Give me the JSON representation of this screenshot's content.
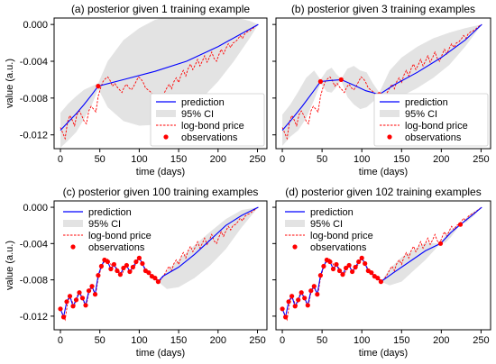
{
  "chart_data": [
    {
      "type": "line",
      "title": "(a) posterior given 1 training example",
      "xlabel": "time (days)",
      "ylabel": "value (a.u.)",
      "xlim": [
        -8,
        262
      ],
      "ylim": [
        -0.0135,
        0.0007
      ],
      "xticks": [
        "0",
        "50",
        "100",
        "150",
        "200",
        "250"
      ],
      "yticks": [
        "0.000",
        "-0.004",
        "-0.008",
        "-0.012"
      ],
      "legend": {
        "placement": "bottom-right",
        "entries": [
          "prediction",
          "95% CI",
          "log-bond price",
          "observations"
        ]
      },
      "prediction": {
        "x": [
          0,
          10,
          20,
          30,
          40,
          48,
          80,
          120,
          160,
          200,
          251
        ],
        "y": [
          -0.0115,
          -0.0106,
          -0.0097,
          -0.0087,
          -0.0076,
          -0.0067,
          -0.006,
          -0.0051,
          -0.004,
          -0.0024,
          0.0
        ]
      },
      "observations": {
        "x": [
          48
        ],
        "y": [
          -0.0067
        ]
      },
      "ci_band": {
        "x": [
          0,
          10,
          20,
          30,
          40,
          48,
          60,
          80,
          100,
          120,
          140,
          160,
          180,
          200,
          220,
          240,
          251
        ],
        "upper": [
          -0.0096,
          -0.0086,
          -0.0078,
          -0.0071,
          -0.0067,
          -0.0064,
          -0.004,
          -0.0017,
          -0.0004,
          0.0005,
          0.0009,
          0.001,
          0.0011,
          0.0011,
          0.0008,
          0.0004,
          0.0
        ],
        "lower": [
          -0.0134,
          -0.0126,
          -0.0117,
          -0.0103,
          -0.0087,
          -0.007,
          -0.009,
          -0.0105,
          -0.011,
          -0.0109,
          -0.0104,
          -0.0094,
          -0.008,
          -0.0062,
          -0.004,
          -0.0015,
          0.0
        ]
      }
    },
    {
      "type": "line",
      "title": "(b) posterior given 3 training examples",
      "xlabel": "time (days)",
      "ylabel": "",
      "xlim": [
        -8,
        262
      ],
      "ylim": [
        -0.0135,
        0.0007
      ],
      "xticks": [
        "0",
        "50",
        "100",
        "150",
        "200",
        "250"
      ],
      "yticks": [],
      "legend": {
        "placement": "bottom-right",
        "entries": [
          "prediction",
          "95% CI",
          "log-bond price",
          "observations"
        ]
      },
      "prediction": {
        "x": [
          0,
          12,
          25,
          38,
          48,
          60,
          74,
          90,
          105,
          122,
          140,
          170,
          200,
          230,
          251
        ],
        "y": [
          -0.0115,
          -0.0103,
          -0.0089,
          -0.0074,
          -0.0062,
          -0.0061,
          -0.006,
          -0.0066,
          -0.0072,
          -0.0076,
          -0.0066,
          -0.0052,
          -0.0036,
          -0.0017,
          0.0
        ]
      },
      "observations": {
        "x": [
          48,
          74,
          122
        ],
        "y": [
          -0.0062,
          -0.006,
          -0.0076
        ]
      },
      "ci_band": {
        "x": [
          0,
          10,
          20,
          30,
          40,
          48,
          56,
          62,
          68,
          74,
          82,
          90,
          98,
          106,
          114,
          122,
          135,
          150,
          170,
          190,
          210,
          230,
          251
        ],
        "upper": [
          -0.0098,
          -0.0087,
          -0.0073,
          -0.0058,
          -0.005,
          -0.006,
          -0.005,
          -0.0047,
          -0.0054,
          -0.0059,
          -0.0048,
          -0.0045,
          -0.005,
          -0.0052,
          -0.0064,
          -0.0074,
          -0.005,
          -0.0036,
          -0.0024,
          -0.0015,
          -0.0009,
          -0.0004,
          0.0
        ],
        "lower": [
          -0.0132,
          -0.0122,
          -0.0115,
          -0.0102,
          -0.0082,
          -0.0064,
          -0.0073,
          -0.0074,
          -0.0068,
          -0.0061,
          -0.0079,
          -0.0087,
          -0.0092,
          -0.009,
          -0.0084,
          -0.0078,
          -0.0082,
          -0.0078,
          -0.0069,
          -0.0058,
          -0.0044,
          -0.0024,
          0.0
        ]
      }
    },
    {
      "type": "line",
      "title": "(c) posterior given 100 training examples",
      "xlabel": "time (days)",
      "ylabel": "value (a.u.)",
      "xlim": [
        -8,
        262
      ],
      "ylim": [
        -0.0135,
        0.0007
      ],
      "xticks": [
        "0",
        "50",
        "100",
        "150",
        "200",
        "250"
      ],
      "yticks": [
        "0.000",
        "-0.004",
        "-0.008",
        "-0.012"
      ],
      "legend": {
        "placement": "top-left",
        "entries": [
          "prediction",
          "95% CI",
          "log-bond price",
          "observations"
        ]
      },
      "prediction": {
        "x": [
          0,
          4,
          8,
          12,
          16,
          20,
          24,
          28,
          32,
          36,
          40,
          44,
          48,
          52,
          56,
          60,
          64,
          68,
          72,
          76,
          80,
          84,
          88,
          92,
          96,
          100,
          104,
          108,
          112,
          116,
          120,
          124,
          130,
          150,
          170,
          190,
          210,
          230,
          251
        ],
        "y": [
          -0.0112,
          -0.0121,
          -0.0104,
          -0.0098,
          -0.0109,
          -0.0102,
          -0.0094,
          -0.01,
          -0.0108,
          -0.0092,
          -0.0087,
          -0.0096,
          -0.0075,
          -0.0065,
          -0.0058,
          -0.006,
          -0.0068,
          -0.0063,
          -0.007,
          -0.0074,
          -0.0067,
          -0.0064,
          -0.0071,
          -0.0066,
          -0.006,
          -0.0056,
          -0.0062,
          -0.007,
          -0.0072,
          -0.0076,
          -0.0078,
          -0.0082,
          -0.0076,
          -0.0066,
          -0.0052,
          -0.0036,
          -0.002,
          -0.0009,
          0.0
        ]
      },
      "observations": {
        "x": [
          0,
          4,
          8,
          12,
          16,
          20,
          24,
          28,
          32,
          36,
          40,
          44,
          48,
          52,
          56,
          60,
          64,
          68,
          72,
          76,
          80,
          84,
          88,
          92,
          96,
          100,
          104,
          108,
          112,
          116,
          120,
          124
        ],
        "y": [
          -0.0112,
          -0.0121,
          -0.0104,
          -0.0098,
          -0.0109,
          -0.0102,
          -0.0094,
          -0.01,
          -0.0108,
          -0.0092,
          -0.0087,
          -0.0096,
          -0.0075,
          -0.0065,
          -0.0058,
          -0.006,
          -0.0068,
          -0.0063,
          -0.007,
          -0.0074,
          -0.0067,
          -0.0064,
          -0.0071,
          -0.0066,
          -0.006,
          -0.0056,
          -0.0062,
          -0.007,
          -0.0072,
          -0.0076,
          -0.0078,
          -0.0082
        ]
      },
      "ci_band": {
        "x": [
          124,
          135,
          150,
          170,
          190,
          210,
          230,
          251
        ],
        "upper": [
          -0.0082,
          -0.007,
          -0.0058,
          -0.0042,
          -0.0027,
          -0.0013,
          -0.0003,
          0.0
        ],
        "lower": [
          -0.0082,
          -0.009,
          -0.0088,
          -0.0078,
          -0.0064,
          -0.0046,
          -0.0022,
          0.0
        ]
      }
    },
    {
      "type": "line",
      "title": "(d) posterior given 102 training examples",
      "xlabel": "time (days)",
      "ylabel": "",
      "xlim": [
        -8,
        262
      ],
      "ylim": [
        -0.0135,
        0.0007
      ],
      "xticks": [
        "0",
        "50",
        "100",
        "150",
        "200",
        "250"
      ],
      "yticks": [],
      "legend": {
        "placement": "top-left",
        "entries": [
          "prediction",
          "95% CI",
          "log-bond price",
          "observations"
        ]
      },
      "prediction": {
        "x": [
          0,
          4,
          8,
          12,
          16,
          20,
          24,
          28,
          32,
          36,
          40,
          44,
          48,
          52,
          56,
          60,
          64,
          68,
          72,
          76,
          80,
          84,
          88,
          92,
          96,
          100,
          104,
          108,
          112,
          116,
          120,
          124,
          140,
          160,
          180,
          199,
          212,
          224,
          240,
          251
        ],
        "y": [
          -0.0112,
          -0.0121,
          -0.0104,
          -0.0098,
          -0.0109,
          -0.0102,
          -0.0094,
          -0.01,
          -0.0108,
          -0.0092,
          -0.0087,
          -0.0096,
          -0.0075,
          -0.0065,
          -0.0058,
          -0.006,
          -0.0068,
          -0.0063,
          -0.007,
          -0.0074,
          -0.0067,
          -0.0064,
          -0.0071,
          -0.0066,
          -0.006,
          -0.0056,
          -0.0062,
          -0.007,
          -0.0072,
          -0.0076,
          -0.0078,
          -0.0082,
          -0.0072,
          -0.006,
          -0.0048,
          -0.004,
          -0.0028,
          -0.0019,
          -0.0008,
          0.0
        ]
      },
      "observations": {
        "x": [
          0,
          4,
          8,
          12,
          16,
          20,
          24,
          28,
          32,
          36,
          40,
          44,
          48,
          52,
          56,
          60,
          64,
          68,
          72,
          76,
          80,
          84,
          88,
          92,
          96,
          100,
          104,
          108,
          112,
          116,
          120,
          124,
          199,
          224
        ],
        "y": [
          -0.0112,
          -0.0121,
          -0.0104,
          -0.0098,
          -0.0109,
          -0.0102,
          -0.0094,
          -0.01,
          -0.0108,
          -0.0092,
          -0.0087,
          -0.0096,
          -0.0075,
          -0.0065,
          -0.0058,
          -0.006,
          -0.0068,
          -0.0063,
          -0.007,
          -0.0074,
          -0.0067,
          -0.0064,
          -0.0071,
          -0.0066,
          -0.006,
          -0.0056,
          -0.0062,
          -0.007,
          -0.0072,
          -0.0076,
          -0.0078,
          -0.0082,
          -0.004,
          -0.0019
        ]
      },
      "ci_band": {
        "x": [
          124,
          135,
          150,
          165,
          180,
          199,
          205,
          212,
          218,
          224,
          232,
          240,
          251
        ],
        "upper": [
          -0.0082,
          -0.0068,
          -0.0055,
          -0.0047,
          -0.0039,
          -0.004,
          -0.003,
          -0.0025,
          -0.0021,
          -0.0019,
          -0.0011,
          -0.0005,
          0.0
        ],
        "lower": [
          -0.0082,
          -0.0086,
          -0.0082,
          -0.007,
          -0.0058,
          -0.004,
          -0.0039,
          -0.0033,
          -0.0026,
          -0.0019,
          -0.0016,
          -0.001,
          0.0
        ]
      }
    }
  ],
  "log_bond_price": {
    "x": [
      0,
      3,
      6,
      9,
      12,
      15,
      18,
      21,
      24,
      27,
      30,
      33,
      36,
      39,
      42,
      45,
      48,
      51,
      54,
      57,
      60,
      63,
      66,
      69,
      72,
      75,
      78,
      81,
      84,
      87,
      90,
      93,
      96,
      99,
      102,
      105,
      108,
      111,
      114,
      117,
      120,
      123,
      126,
      129,
      132,
      135,
      138,
      141,
      144,
      147,
      150,
      153,
      156,
      159,
      162,
      165,
      168,
      171,
      174,
      177,
      180,
      183,
      186,
      189,
      192,
      195,
      198,
      201,
      204,
      207,
      210,
      213,
      216,
      219,
      222,
      225,
      228,
      231,
      234,
      237,
      240,
      243,
      246,
      249,
      251
    ],
    "y": [
      -0.0112,
      -0.0118,
      -0.0124,
      -0.0106,
      -0.0099,
      -0.0104,
      -0.011,
      -0.0098,
      -0.0094,
      -0.0099,
      -0.0105,
      -0.0108,
      -0.0094,
      -0.0089,
      -0.0092,
      -0.0095,
      -0.0078,
      -0.0069,
      -0.0062,
      -0.0059,
      -0.0057,
      -0.0061,
      -0.0067,
      -0.0064,
      -0.0068,
      -0.0071,
      -0.0074,
      -0.0068,
      -0.0065,
      -0.0069,
      -0.0071,
      -0.0067,
      -0.0062,
      -0.0057,
      -0.0059,
      -0.0063,
      -0.0069,
      -0.0071,
      -0.0073,
      -0.0076,
      -0.0077,
      -0.008,
      -0.0081,
      -0.0078,
      -0.0074,
      -0.0069,
      -0.0065,
      -0.007,
      -0.0062,
      -0.0058,
      -0.0063,
      -0.0055,
      -0.005,
      -0.0056,
      -0.0048,
      -0.0043,
      -0.0049,
      -0.0044,
      -0.0038,
      -0.0045,
      -0.004,
      -0.0034,
      -0.0041,
      -0.0036,
      -0.003,
      -0.0037,
      -0.004,
      -0.0033,
      -0.0027,
      -0.0032,
      -0.0026,
      -0.0021,
      -0.0025,
      -0.002,
      -0.0019,
      -0.0016,
      -0.0012,
      -0.0015,
      -0.001,
      -0.0008,
      -0.0007,
      -0.0005,
      -0.0003,
      -0.0001,
      0.0
    ]
  },
  "colors": {
    "prediction": "#0000ff",
    "ci": "#e3e3e3",
    "log_bond_price": "#ff0000",
    "observations": "#ff0000",
    "axes": "#000000"
  }
}
